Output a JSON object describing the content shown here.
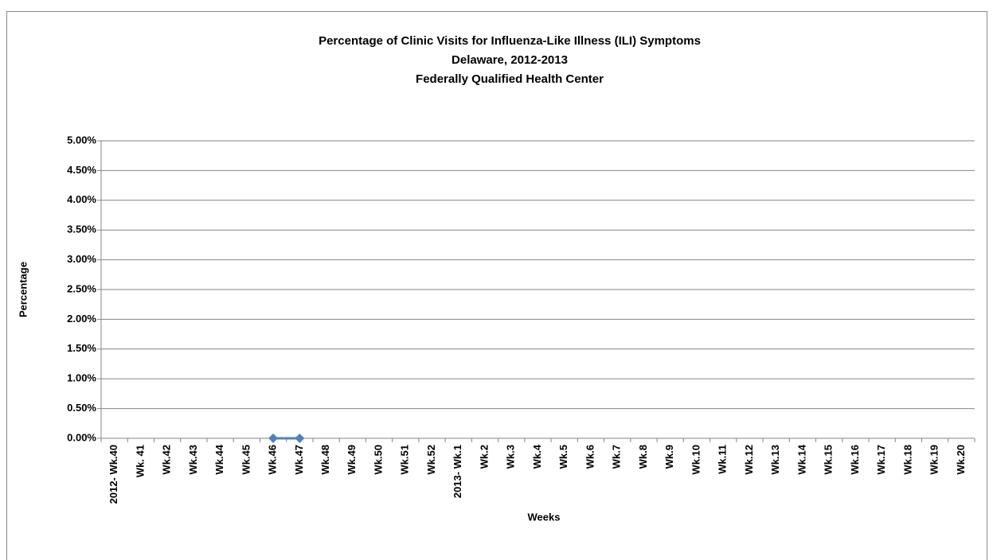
{
  "chart_data": {
    "type": "line",
    "title": "Percentage of Clinic Visits for Influenza-Like Illness (ILI) Symptoms",
    "subtitle": [
      "Delaware, 2012-2013",
      "Federally Qualified Health Center"
    ],
    "x_label": "Weeks",
    "y_label": "Percentage",
    "categories": [
      "2012- Wk.40",
      "Wk. 41",
      "Wk.42",
      "Wk.43",
      "Wk.44",
      "Wk.45",
      "Wk.46",
      "Wk.47",
      "Wk.48",
      "Wk.49",
      "Wk.50",
      "Wk.51",
      "Wk.52",
      "2013- Wk.1",
      "Wk.2",
      "Wk.3",
      "Wk.4",
      "Wk.5",
      "Wk.6",
      "Wk.7",
      "Wk.8",
      "Wk.9",
      "Wk.10",
      "Wk.11",
      "Wk.12",
      "Wk.13",
      "Wk.14",
      "Wk.15",
      "Wk.16",
      "Wk.17",
      "Wk.18",
      "Wk.19",
      "Wk.20"
    ],
    "series": [
      {
        "color": "#4f81bd",
        "values": [
          null,
          null,
          null,
          null,
          null,
          null,
          0,
          0,
          null,
          null,
          null,
          null,
          null,
          null,
          null,
          null,
          null,
          null,
          null,
          null,
          null,
          null,
          null,
          null,
          null,
          null,
          null,
          null,
          null,
          null,
          null,
          null,
          null
        ]
      }
    ],
    "ylim": [
      0,
      5
    ],
    "yticks": [
      {
        "value": 0,
        "label": "0.00%"
      },
      {
        "value": 0.5,
        "label": "0.50%"
      },
      {
        "value": 1,
        "label": "1.00%"
      },
      {
        "value": 1.5,
        "label": "1.50%"
      },
      {
        "value": 2,
        "label": "2.00%"
      },
      {
        "value": 2.5,
        "label": "2.50%"
      },
      {
        "value": 3,
        "label": "3.00%"
      },
      {
        "value": 3.5,
        "label": "3.50%"
      },
      {
        "value": 4,
        "label": "4.00%"
      },
      {
        "value": 4.5,
        "label": "4.50%"
      },
      {
        "value": 5,
        "label": "5.00%"
      }
    ],
    "grid": true
  }
}
